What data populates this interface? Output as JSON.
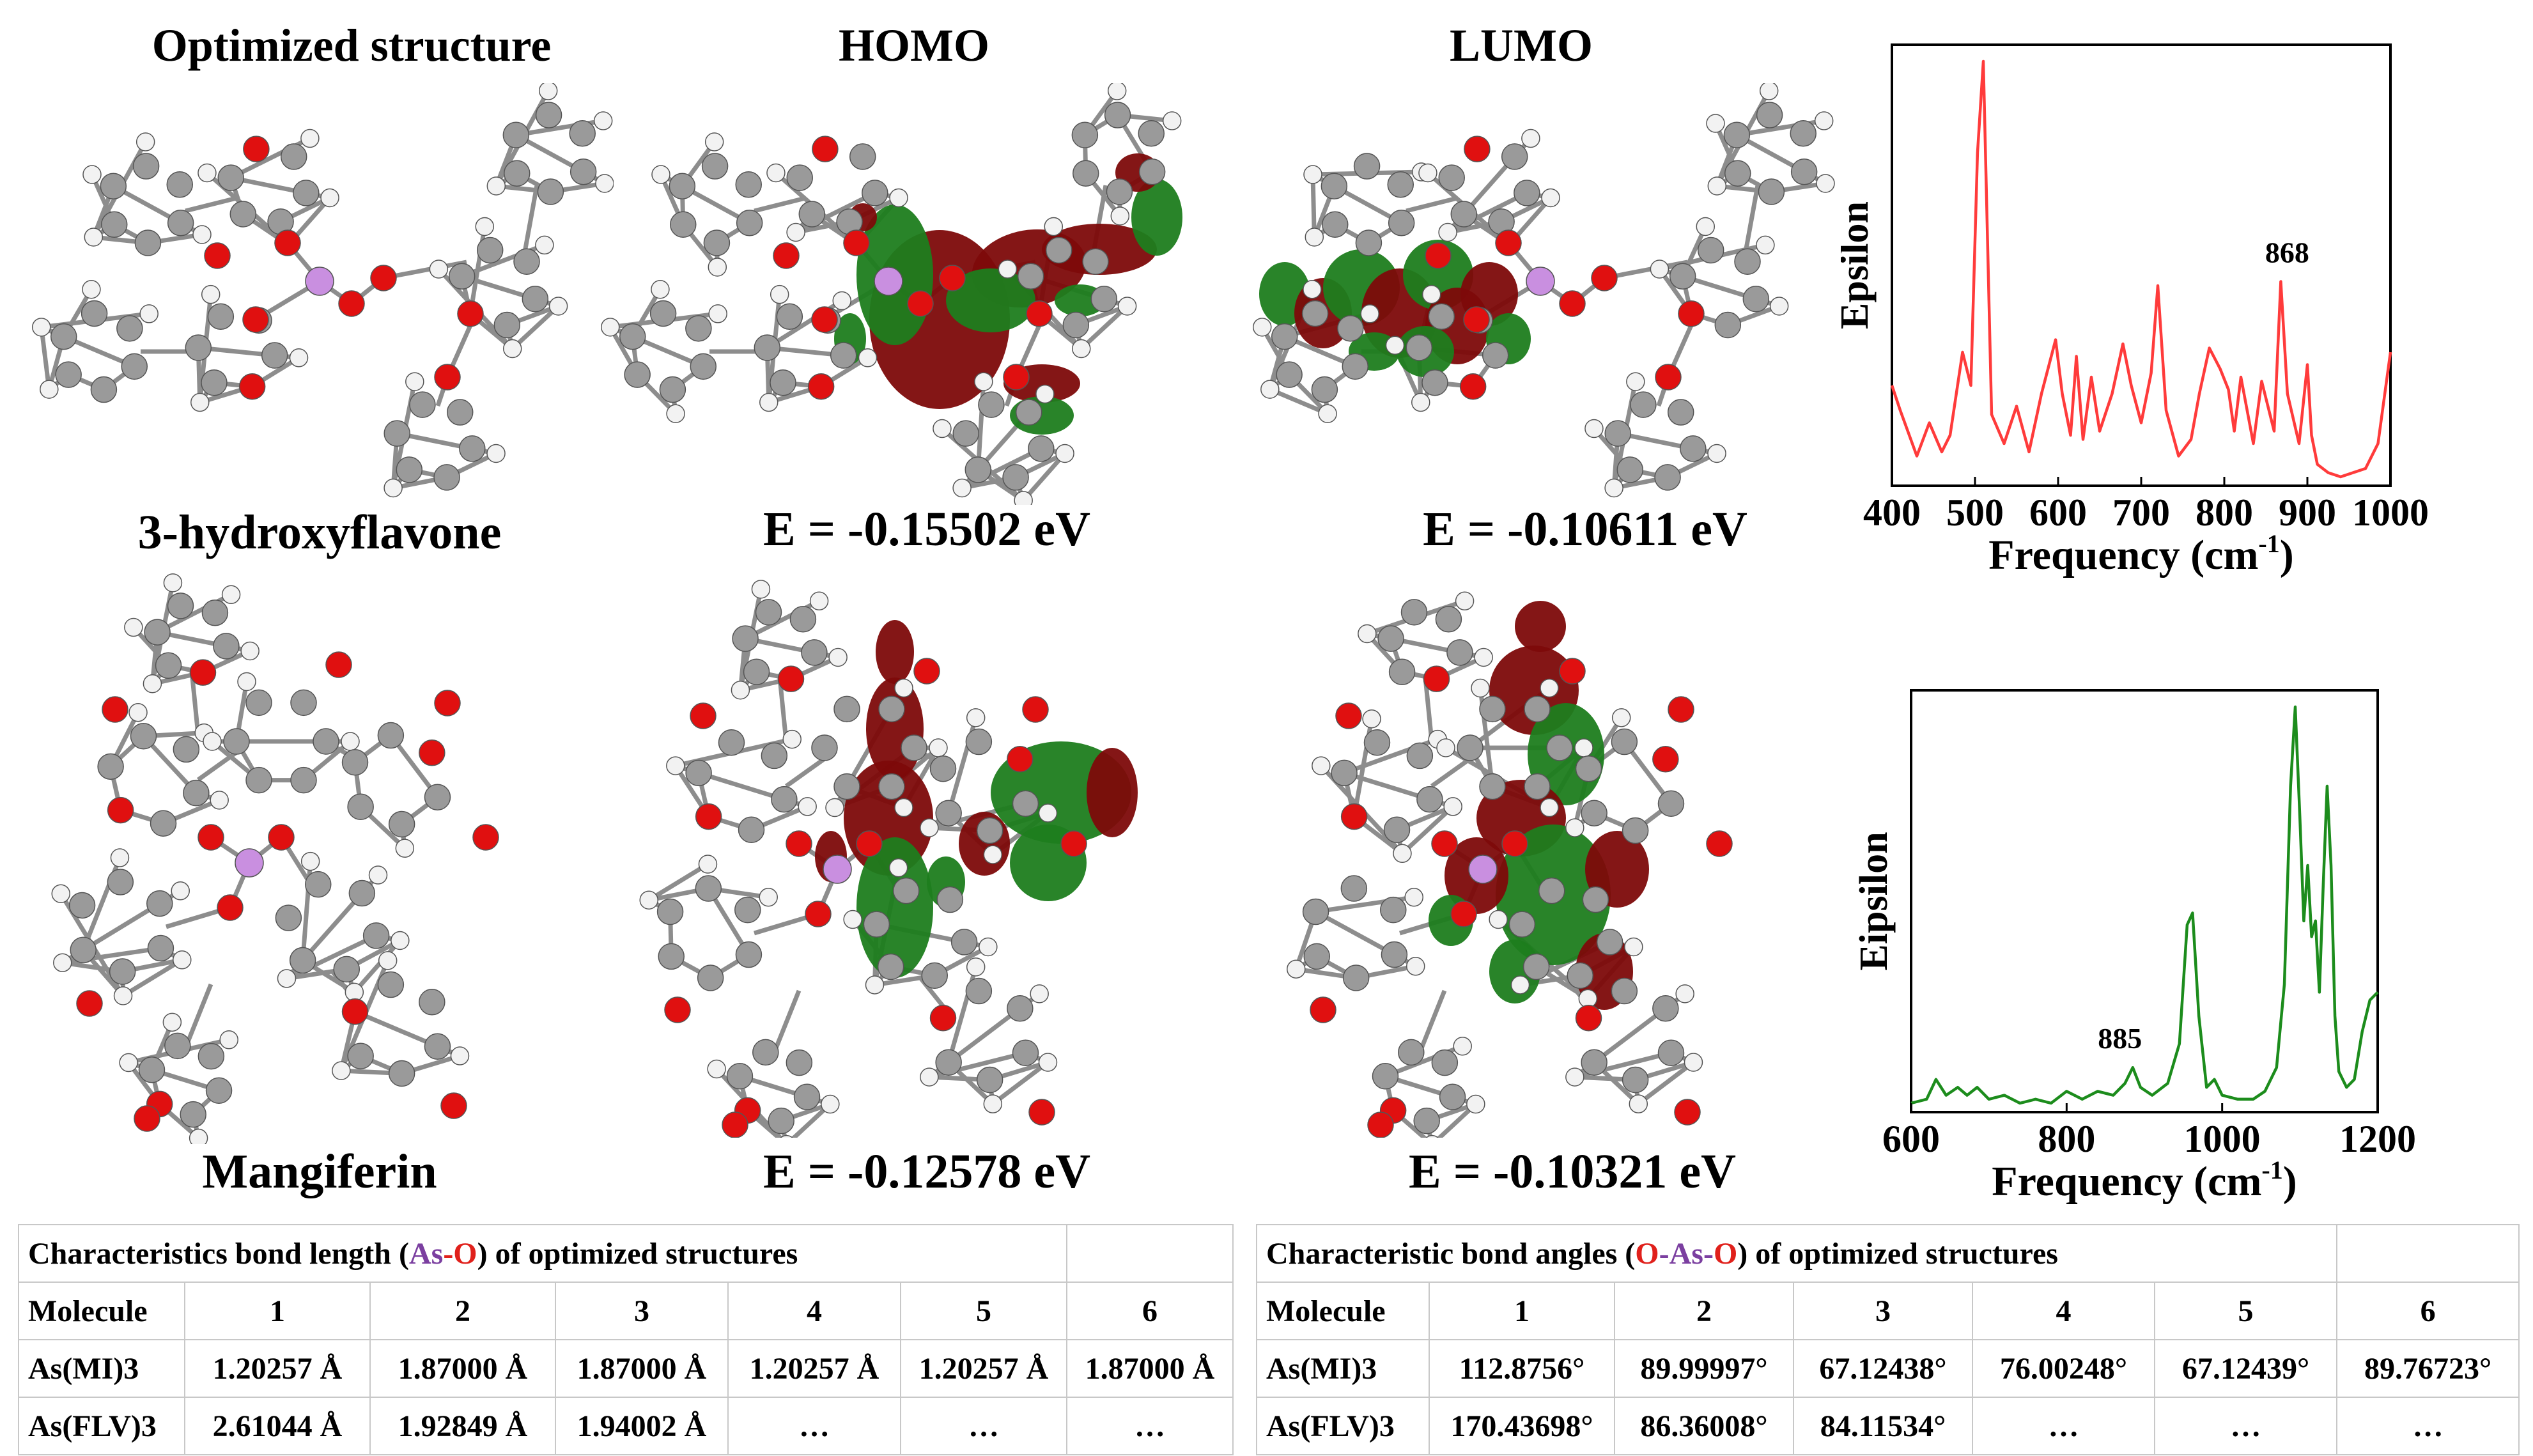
{
  "headers": {
    "optimized": "Optimized structure",
    "homo": "HOMO",
    "lumo": "LUMO"
  },
  "labels": {
    "flavone": "3-hydroxyflavone",
    "mangiferin": "Mangiferin"
  },
  "energies": {
    "flv_homo": "E = -0.15502 eV",
    "flv_lumo": "E = -0.10611 eV",
    "mi_homo": "E = -0.12578 eV",
    "mi_lumo": "E = -0.10321 eV"
  },
  "colors": {
    "carbon": "#9a9a9a",
    "oxygen": "#e01010",
    "hydrogen": "#f2f2f2",
    "arsenic": "#c98fe0",
    "orbital_pos": "#1e7d1e",
    "orbital_neg": "#7d0a0a",
    "spectrum_top": "#ff3b3b",
    "spectrum_bottom": "#1c8c1c"
  },
  "chart_data": [
    {
      "type": "line",
      "title": "",
      "xlabel": "Frequency (cm⁻¹)",
      "ylabel": "Epsilon",
      "xlim": [
        400,
        1000
      ],
      "xticks": [
        "400",
        "500",
        "600",
        "700",
        "800",
        "900",
        "1000"
      ],
      "annotation": {
        "x": 868,
        "text": "868"
      },
      "series": [
        {
          "x": [
            400,
            410,
            430,
            445,
            460,
            470,
            485,
            495,
            503,
            510,
            520,
            535,
            550,
            565,
            580,
            597,
            605,
            615,
            622,
            630,
            640,
            650,
            665,
            678,
            688,
            700,
            712,
            720,
            730,
            745,
            760,
            770,
            782,
            795,
            805,
            812,
            820,
            835,
            845,
            860,
            868,
            876,
            890,
            900,
            905,
            912,
            925,
            940,
            955,
            970,
            985,
            1000
          ],
          "y": [
            0.22,
            0.16,
            0.05,
            0.13,
            0.06,
            0.1,
            0.3,
            0.22,
            0.78,
            1.0,
            0.15,
            0.08,
            0.17,
            0.06,
            0.2,
            0.33,
            0.2,
            0.1,
            0.29,
            0.09,
            0.24,
            0.11,
            0.2,
            0.32,
            0.22,
            0.13,
            0.25,
            0.46,
            0.16,
            0.05,
            0.09,
            0.2,
            0.31,
            0.26,
            0.21,
            0.11,
            0.24,
            0.08,
            0.23,
            0.11,
            0.47,
            0.2,
            0.08,
            0.27,
            0.1,
            0.03,
            0.01,
            0.0,
            0.01,
            0.02,
            0.08,
            0.3
          ]
        }
      ]
    },
    {
      "type": "line",
      "title": "",
      "xlabel": "Frequency (cm⁻¹)",
      "ylabel": "Eipsilon",
      "xlim": [
        600,
        1200
      ],
      "xticks": [
        "600",
        "800",
        "1000",
        "1200"
      ],
      "annotation": {
        "x": 885,
        "text": "885"
      },
      "series": [
        {
          "x": [
            600,
            620,
            632,
            645,
            660,
            672,
            685,
            700,
            720,
            740,
            760,
            780,
            800,
            820,
            840,
            860,
            875,
            885,
            895,
            910,
            930,
            945,
            955,
            962,
            970,
            980,
            990,
            1000,
            1020,
            1040,
            1055,
            1070,
            1080,
            1088,
            1094,
            1100,
            1105,
            1110,
            1115,
            1120,
            1125,
            1130,
            1135,
            1140,
            1145,
            1150,
            1160,
            1170,
            1180,
            1190,
            1200
          ],
          "y": [
            0.0,
            0.01,
            0.06,
            0.02,
            0.04,
            0.02,
            0.04,
            0.01,
            0.02,
            0.0,
            0.01,
            0.0,
            0.03,
            0.01,
            0.03,
            0.02,
            0.05,
            0.09,
            0.04,
            0.02,
            0.05,
            0.15,
            0.45,
            0.48,
            0.22,
            0.04,
            0.06,
            0.02,
            0.01,
            0.01,
            0.03,
            0.09,
            0.3,
            0.8,
            1.0,
            0.72,
            0.46,
            0.6,
            0.42,
            0.46,
            0.28,
            0.55,
            0.8,
            0.6,
            0.22,
            0.08,
            0.04,
            0.06,
            0.18,
            0.26,
            0.28
          ]
        }
      ]
    }
  ],
  "table_left": {
    "title_prefix": "Characteristics bond length (",
    "title_as": "As",
    "title_dash": "-",
    "title_o": "O",
    "title_suffix": ") of optimized structures",
    "col_header": [
      "Molecule",
      "1",
      "2",
      "3",
      "4",
      "5",
      "6"
    ],
    "rows": [
      [
        "As(MI)3",
        "1.20257 Å",
        "1.87000 Å",
        "1.87000 Å",
        "1.20257 Å",
        "1.20257 Å",
        "1.87000 Å"
      ],
      [
        "As(FLV)3",
        "2.61044 Å",
        "1.92849 Å",
        "1.94002 Å",
        "…",
        "…",
        "…"
      ]
    ]
  },
  "table_right": {
    "title_prefix": "Characteristic bond angles (",
    "title_o1": "O",
    "title_dash1": "-",
    "title_as": "As",
    "title_dash2": "-",
    "title_o2": "O",
    "title_suffix": ") of optimized structures",
    "col_header": [
      "Molecule",
      "1",
      "2",
      "3",
      "4",
      "5",
      "6"
    ],
    "rows": [
      [
        "As(MI)3",
        "112.8756°",
        "89.99997°",
        "67.12438°",
        "76.00248°",
        "67.12439°",
        "89.76723°"
      ],
      [
        "As(FLV)3",
        "170.43698°",
        "86.36008°",
        "84.11534°",
        "…",
        "…",
        "…"
      ]
    ]
  }
}
